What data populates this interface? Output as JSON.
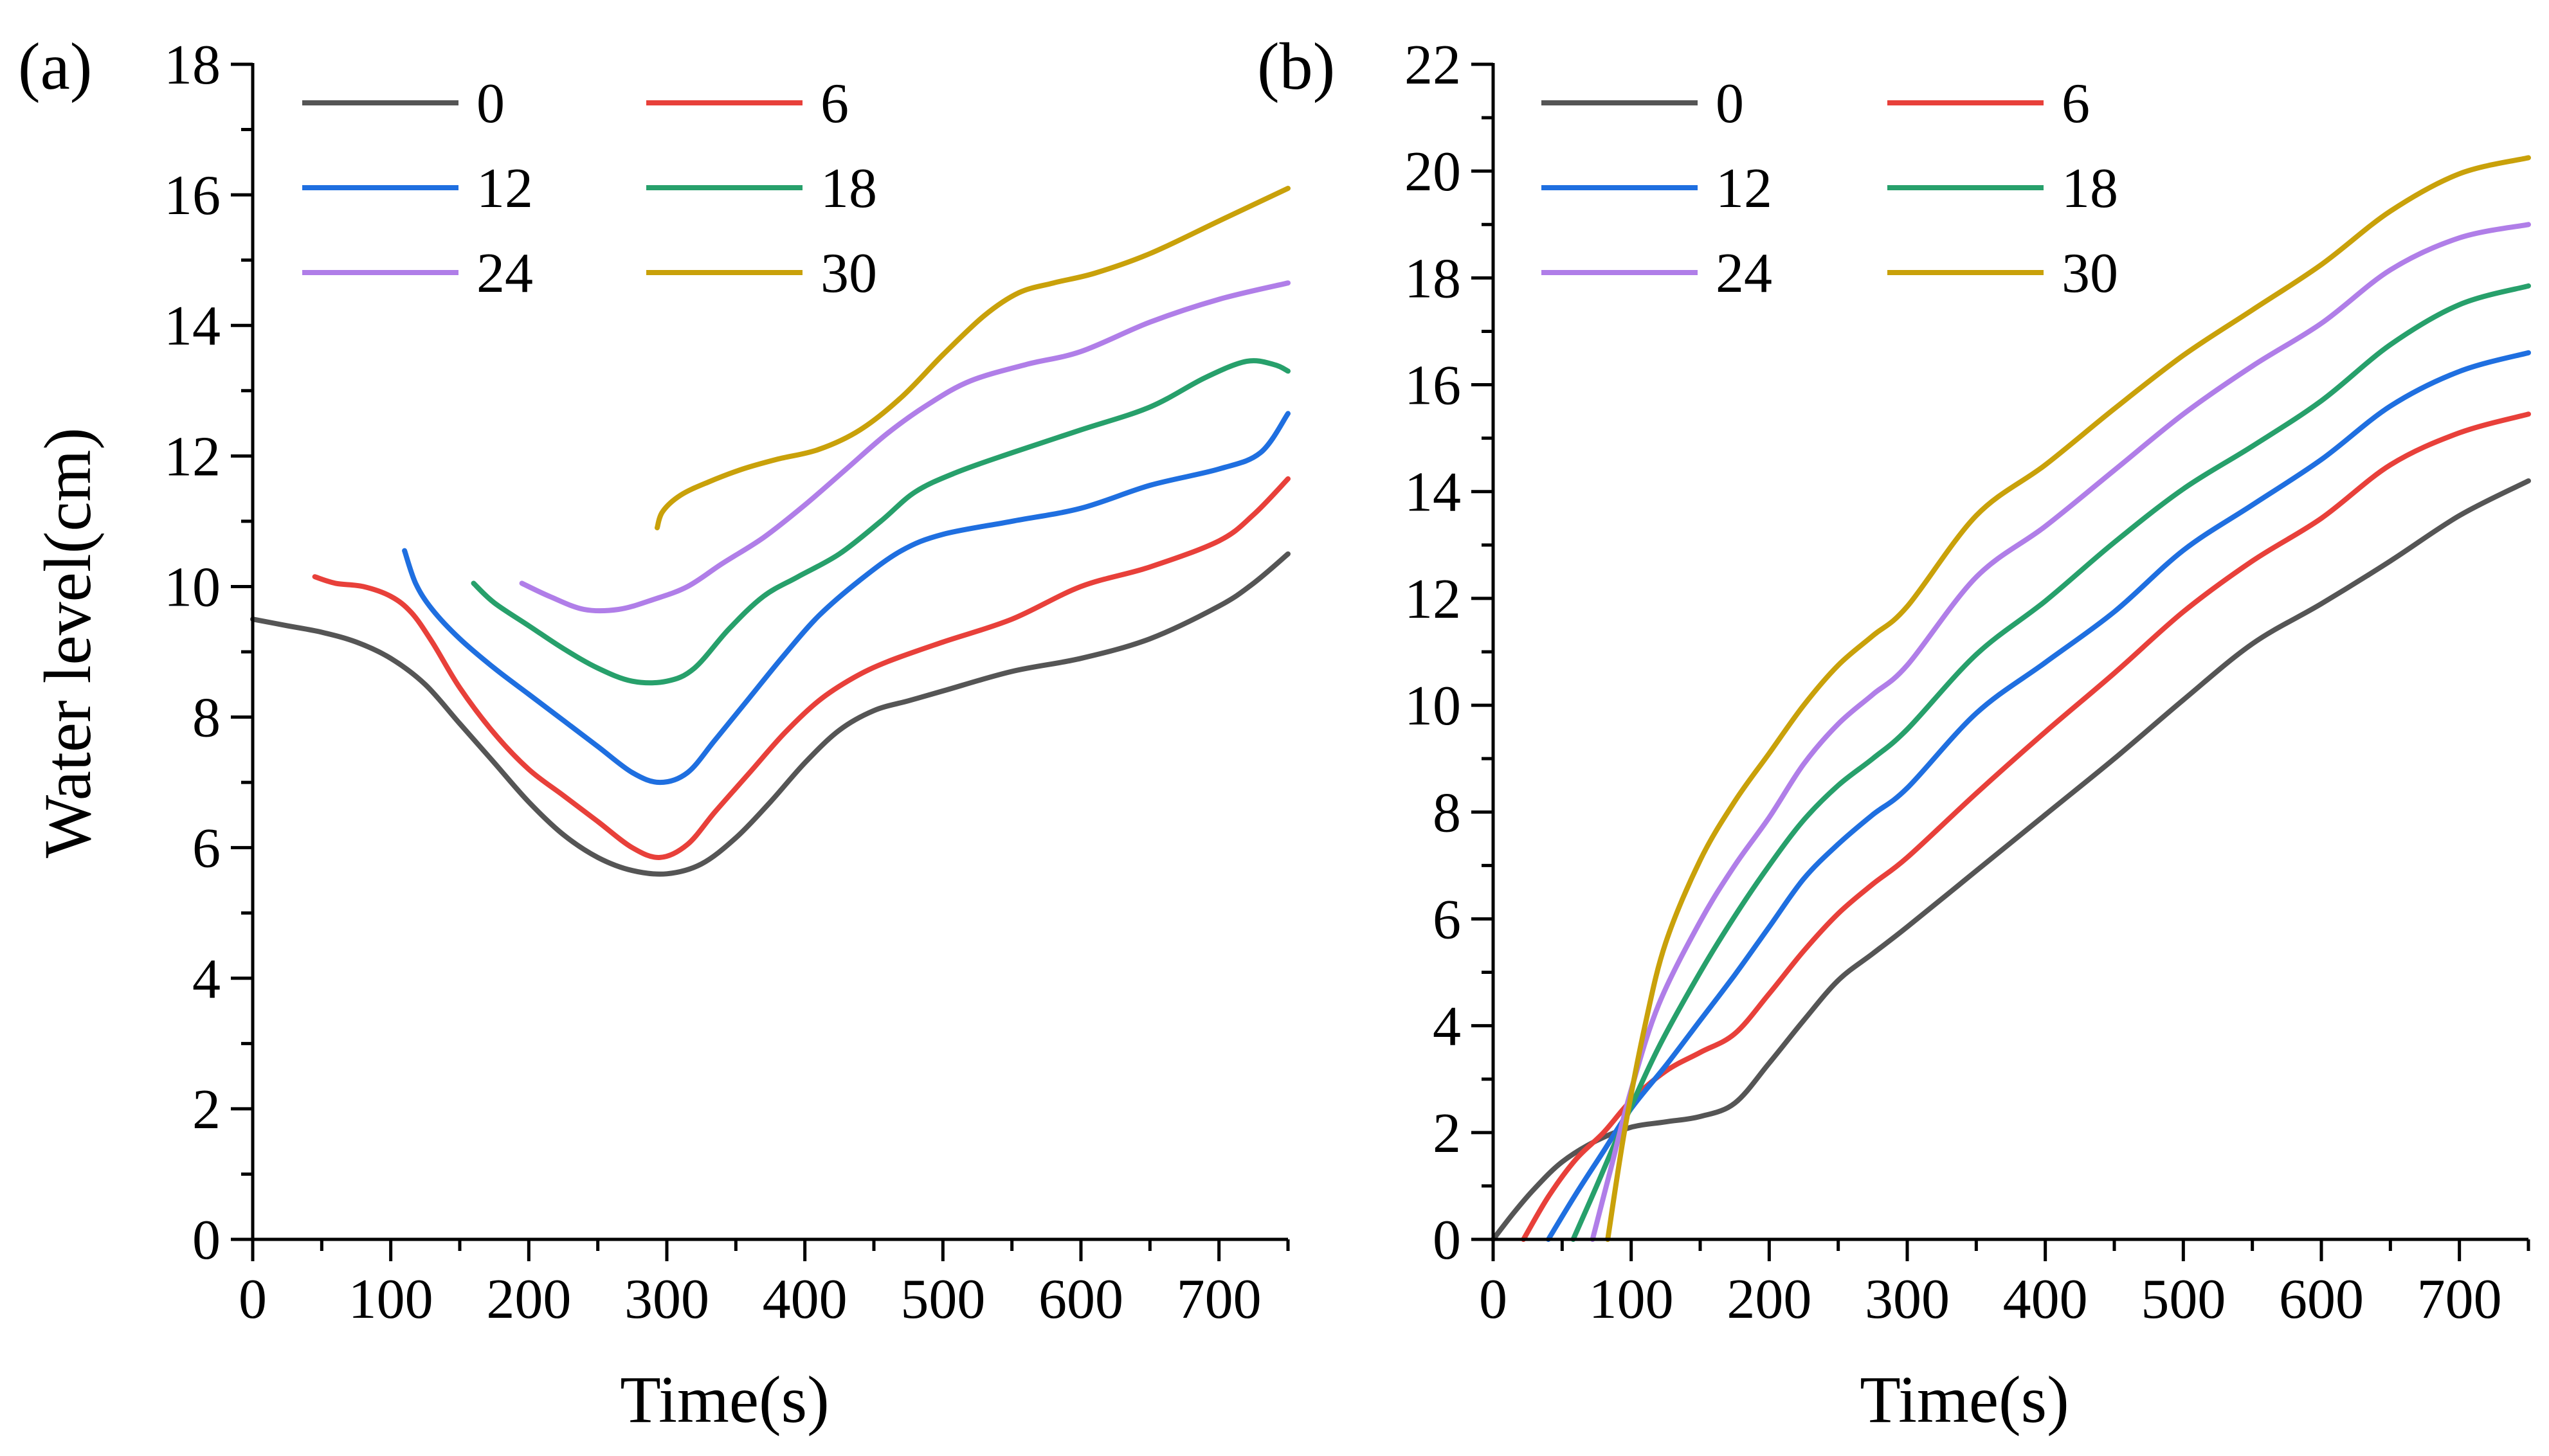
{
  "chart_data": [
    {
      "type": "line",
      "panel_label": "(a)",
      "xlabel": "Time(s)",
      "ylabel": "Water level(cm)",
      "xlim": [
        0,
        750
      ],
      "ylim": [
        0,
        18
      ],
      "xticks": [
        0,
        100,
        200,
        300,
        400,
        500,
        600,
        700
      ],
      "yticks": [
        0,
        2,
        4,
        6,
        8,
        10,
        12,
        14,
        16,
        18
      ],
      "series": [
        {
          "name": "0",
          "color": "#555555",
          "points": [
            [
              0,
              9.5
            ],
            [
              25,
              9.4
            ],
            [
              50,
              9.3
            ],
            [
              75,
              9.15
            ],
            [
              100,
              8.9
            ],
            [
              125,
              8.5
            ],
            [
              150,
              7.9
            ],
            [
              175,
              7.3
            ],
            [
              200,
              6.7
            ],
            [
              225,
              6.2
            ],
            [
              250,
              5.85
            ],
            [
              275,
              5.65
            ],
            [
              300,
              5.6
            ],
            [
              325,
              5.75
            ],
            [
              350,
              6.15
            ],
            [
              375,
              6.7
            ],
            [
              400,
              7.3
            ],
            [
              425,
              7.8
            ],
            [
              450,
              8.1
            ],
            [
              475,
              8.25
            ],
            [
              500,
              8.4
            ],
            [
              550,
              8.7
            ],
            [
              600,
              8.9
            ],
            [
              650,
              9.2
            ],
            [
              700,
              9.7
            ],
            [
              725,
              10.05
            ],
            [
              750,
              10.5
            ]
          ]
        },
        {
          "name": "6",
          "color": "#e8403a",
          "points": [
            [
              45,
              10.15
            ],
            [
              60,
              10.05
            ],
            [
              80,
              10.0
            ],
            [
              100,
              9.85
            ],
            [
              115,
              9.6
            ],
            [
              130,
              9.15
            ],
            [
              150,
              8.45
            ],
            [
              175,
              7.75
            ],
            [
              200,
              7.2
            ],
            [
              225,
              6.8
            ],
            [
              250,
              6.4
            ],
            [
              275,
              6.0
            ],
            [
              295,
              5.85
            ],
            [
              315,
              6.05
            ],
            [
              335,
              6.55
            ],
            [
              360,
              7.15
            ],
            [
              385,
              7.75
            ],
            [
              410,
              8.25
            ],
            [
              435,
              8.6
            ],
            [
              460,
              8.85
            ],
            [
              500,
              9.15
            ],
            [
              550,
              9.5
            ],
            [
              600,
              10.0
            ],
            [
              650,
              10.3
            ],
            [
              700,
              10.7
            ],
            [
              725,
              11.1
            ],
            [
              750,
              11.65
            ]
          ]
        },
        {
          "name": "12",
          "color": "#1f6fe0",
          "points": [
            [
              110,
              10.55
            ],
            [
              118,
              10.05
            ],
            [
              130,
              9.65
            ],
            [
              150,
              9.2
            ],
            [
              175,
              8.75
            ],
            [
              200,
              8.35
            ],
            [
              225,
              7.95
            ],
            [
              250,
              7.55
            ],
            [
              275,
              7.15
            ],
            [
              295,
              7.0
            ],
            [
              315,
              7.15
            ],
            [
              335,
              7.65
            ],
            [
              360,
              8.3
            ],
            [
              385,
              8.95
            ],
            [
              410,
              9.55
            ],
            [
              440,
              10.1
            ],
            [
              470,
              10.55
            ],
            [
              500,
              10.8
            ],
            [
              550,
              11.0
            ],
            [
              600,
              11.2
            ],
            [
              650,
              11.55
            ],
            [
              700,
              11.8
            ],
            [
              730,
              12.05
            ],
            [
              750,
              12.65
            ]
          ]
        },
        {
          "name": "18",
          "color": "#27a06b",
          "points": [
            [
              160,
              10.05
            ],
            [
              175,
              9.75
            ],
            [
              200,
              9.4
            ],
            [
              225,
              9.05
            ],
            [
              250,
              8.75
            ],
            [
              275,
              8.55
            ],
            [
              300,
              8.55
            ],
            [
              320,
              8.75
            ],
            [
              345,
              9.35
            ],
            [
              370,
              9.85
            ],
            [
              395,
              10.15
            ],
            [
              425,
              10.5
            ],
            [
              455,
              11.0
            ],
            [
              480,
              11.45
            ],
            [
              510,
              11.75
            ],
            [
              550,
              12.05
            ],
            [
              600,
              12.4
            ],
            [
              650,
              12.75
            ],
            [
              690,
              13.2
            ],
            [
              720,
              13.45
            ],
            [
              740,
              13.4
            ],
            [
              750,
              13.3
            ]
          ]
        },
        {
          "name": "24",
          "color": "#b07ee8",
          "points": [
            [
              195,
              10.05
            ],
            [
              215,
              9.85
            ],
            [
              240,
              9.65
            ],
            [
              265,
              9.65
            ],
            [
              290,
              9.8
            ],
            [
              315,
              10.0
            ],
            [
              340,
              10.35
            ],
            [
              370,
              10.75
            ],
            [
              400,
              11.25
            ],
            [
              430,
              11.8
            ],
            [
              460,
              12.35
            ],
            [
              490,
              12.8
            ],
            [
              520,
              13.15
            ],
            [
              560,
              13.4
            ],
            [
              600,
              13.6
            ],
            [
              650,
              14.05
            ],
            [
              700,
              14.4
            ],
            [
              750,
              14.65
            ]
          ]
        },
        {
          "name": "30",
          "color": "#c9a10a",
          "points": [
            [
              293,
              10.9
            ],
            [
              297,
              11.15
            ],
            [
              310,
              11.4
            ],
            [
              330,
              11.6
            ],
            [
              355,
              11.8
            ],
            [
              380,
              11.95
            ],
            [
              410,
              12.1
            ],
            [
              440,
              12.4
            ],
            [
              470,
              12.9
            ],
            [
              500,
              13.55
            ],
            [
              530,
              14.15
            ],
            [
              555,
              14.5
            ],
            [
              580,
              14.65
            ],
            [
              610,
              14.8
            ],
            [
              650,
              15.1
            ],
            [
              700,
              15.6
            ],
            [
              750,
              16.1
            ]
          ]
        }
      ]
    },
    {
      "type": "line",
      "panel_label": "(b)",
      "xlabel": "Time(s)",
      "ylabel": "",
      "xlim": [
        0,
        750
      ],
      "ylim": [
        0,
        22
      ],
      "xticks": [
        0,
        100,
        200,
        300,
        400,
        500,
        600,
        700
      ],
      "yticks": [
        0,
        2,
        4,
        6,
        8,
        10,
        12,
        14,
        16,
        18,
        20,
        22
      ],
      "series": [
        {
          "name": "0",
          "color": "#555555",
          "points": [
            [
              0,
              0
            ],
            [
              15,
              0.5
            ],
            [
              30,
              0.95
            ],
            [
              50,
              1.45
            ],
            [
              75,
              1.85
            ],
            [
              100,
              2.1
            ],
            [
              125,
              2.2
            ],
            [
              150,
              2.3
            ],
            [
              175,
              2.55
            ],
            [
              200,
              3.3
            ],
            [
              225,
              4.1
            ],
            [
              250,
              4.85
            ],
            [
              275,
              5.35
            ],
            [
              300,
              5.85
            ],
            [
              350,
              6.9
            ],
            [
              400,
              7.95
            ],
            [
              450,
              9.0
            ],
            [
              500,
              10.1
            ],
            [
              550,
              11.15
            ],
            [
              600,
              11.9
            ],
            [
              650,
              12.7
            ],
            [
              700,
              13.55
            ],
            [
              750,
              14.2
            ]
          ]
        },
        {
          "name": "6",
          "color": "#e8403a",
          "points": [
            [
              22,
              0
            ],
            [
              40,
              0.8
            ],
            [
              60,
              1.5
            ],
            [
              80,
              2.0
            ],
            [
              100,
              2.6
            ],
            [
              125,
              3.15
            ],
            [
              150,
              3.5
            ],
            [
              175,
              3.85
            ],
            [
              200,
              4.6
            ],
            [
              225,
              5.4
            ],
            [
              250,
              6.1
            ],
            [
              275,
              6.65
            ],
            [
              300,
              7.15
            ],
            [
              350,
              8.35
            ],
            [
              400,
              9.5
            ],
            [
              450,
              10.6
            ],
            [
              500,
              11.75
            ],
            [
              550,
              12.7
            ],
            [
              600,
              13.5
            ],
            [
              650,
              14.5
            ],
            [
              700,
              15.1
            ],
            [
              750,
              15.45
            ]
          ]
        },
        {
          "name": "12",
          "color": "#1f6fe0",
          "points": [
            [
              40,
              0
            ],
            [
              60,
              0.85
            ],
            [
              80,
              1.65
            ],
            [
              100,
              2.45
            ],
            [
              125,
              3.25
            ],
            [
              150,
              4.1
            ],
            [
              175,
              4.95
            ],
            [
              200,
              5.85
            ],
            [
              225,
              6.75
            ],
            [
              250,
              7.4
            ],
            [
              275,
              7.95
            ],
            [
              300,
              8.45
            ],
            [
              350,
              9.85
            ],
            [
              400,
              10.8
            ],
            [
              450,
              11.75
            ],
            [
              500,
              12.9
            ],
            [
              550,
              13.75
            ],
            [
              600,
              14.6
            ],
            [
              650,
              15.6
            ],
            [
              700,
              16.25
            ],
            [
              750,
              16.6
            ]
          ]
        },
        {
          "name": "18",
          "color": "#27a06b",
          "points": [
            [
              58,
              0
            ],
            [
              75,
              1.0
            ],
            [
              95,
              2.2
            ],
            [
              120,
              3.6
            ],
            [
              150,
              5.0
            ],
            [
              175,
              6.05
            ],
            [
              200,
              7.0
            ],
            [
              225,
              7.85
            ],
            [
              250,
              8.5
            ],
            [
              275,
              9.0
            ],
            [
              300,
              9.55
            ],
            [
              350,
              10.95
            ],
            [
              400,
              11.95
            ],
            [
              450,
              13.05
            ],
            [
              500,
              14.05
            ],
            [
              550,
              14.85
            ],
            [
              600,
              15.7
            ],
            [
              650,
              16.75
            ],
            [
              700,
              17.5
            ],
            [
              750,
              17.85
            ]
          ]
        },
        {
          "name": "24",
          "color": "#b07ee8",
          "points": [
            [
              72,
              0
            ],
            [
              85,
              1.3
            ],
            [
              100,
              2.8
            ],
            [
              120,
              4.4
            ],
            [
              150,
              5.95
            ],
            [
              175,
              7.0
            ],
            [
              200,
              7.9
            ],
            [
              225,
              8.9
            ],
            [
              250,
              9.65
            ],
            [
              275,
              10.2
            ],
            [
              300,
              10.75
            ],
            [
              350,
              12.4
            ],
            [
              400,
              13.35
            ],
            [
              450,
              14.4
            ],
            [
              500,
              15.45
            ],
            [
              550,
              16.35
            ],
            [
              600,
              17.15
            ],
            [
              650,
              18.15
            ],
            [
              700,
              18.75
            ],
            [
              750,
              19.0
            ]
          ]
        },
        {
          "name": "30",
          "color": "#c9a10a",
          "points": [
            [
              83,
              0
            ],
            [
              95,
              2.0
            ],
            [
              110,
              4.0
            ],
            [
              125,
              5.55
            ],
            [
              150,
              7.1
            ],
            [
              175,
              8.2
            ],
            [
              200,
              9.1
            ],
            [
              225,
              10.0
            ],
            [
              250,
              10.75
            ],
            [
              275,
              11.3
            ],
            [
              300,
              11.85
            ],
            [
              350,
              13.55
            ],
            [
              400,
              14.5
            ],
            [
              450,
              15.55
            ],
            [
              500,
              16.55
            ],
            [
              550,
              17.4
            ],
            [
              600,
              18.25
            ],
            [
              650,
              19.25
            ],
            [
              700,
              19.95
            ],
            [
              750,
              20.25
            ]
          ]
        }
      ]
    }
  ]
}
